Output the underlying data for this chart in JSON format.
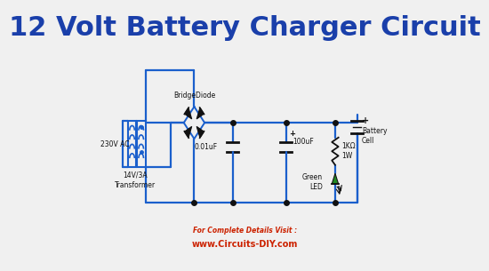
{
  "title": "12 Volt Battery Charger Circuit",
  "title_color": "#1a3faa",
  "title_fontsize": 22,
  "bg_color": "#f0f0f0",
  "circuit_color": "#1a5fcc",
  "black_color": "#111111",
  "footer_text1": "For Complete Details Visit :",
  "footer_text2": "www.Circuits-DIY.com",
  "footer_color": "#cc2200",
  "label_230v": "230V AC",
  "label_transformer": "14V/3A\nTransformer",
  "label_bridge": "BridgeDiode",
  "label_cap1": "0.01uF",
  "label_cap2": "100uF",
  "label_resistor": "1KΩ\n1W",
  "label_led": "Green\nLED",
  "label_battery": "Battery\nCell"
}
